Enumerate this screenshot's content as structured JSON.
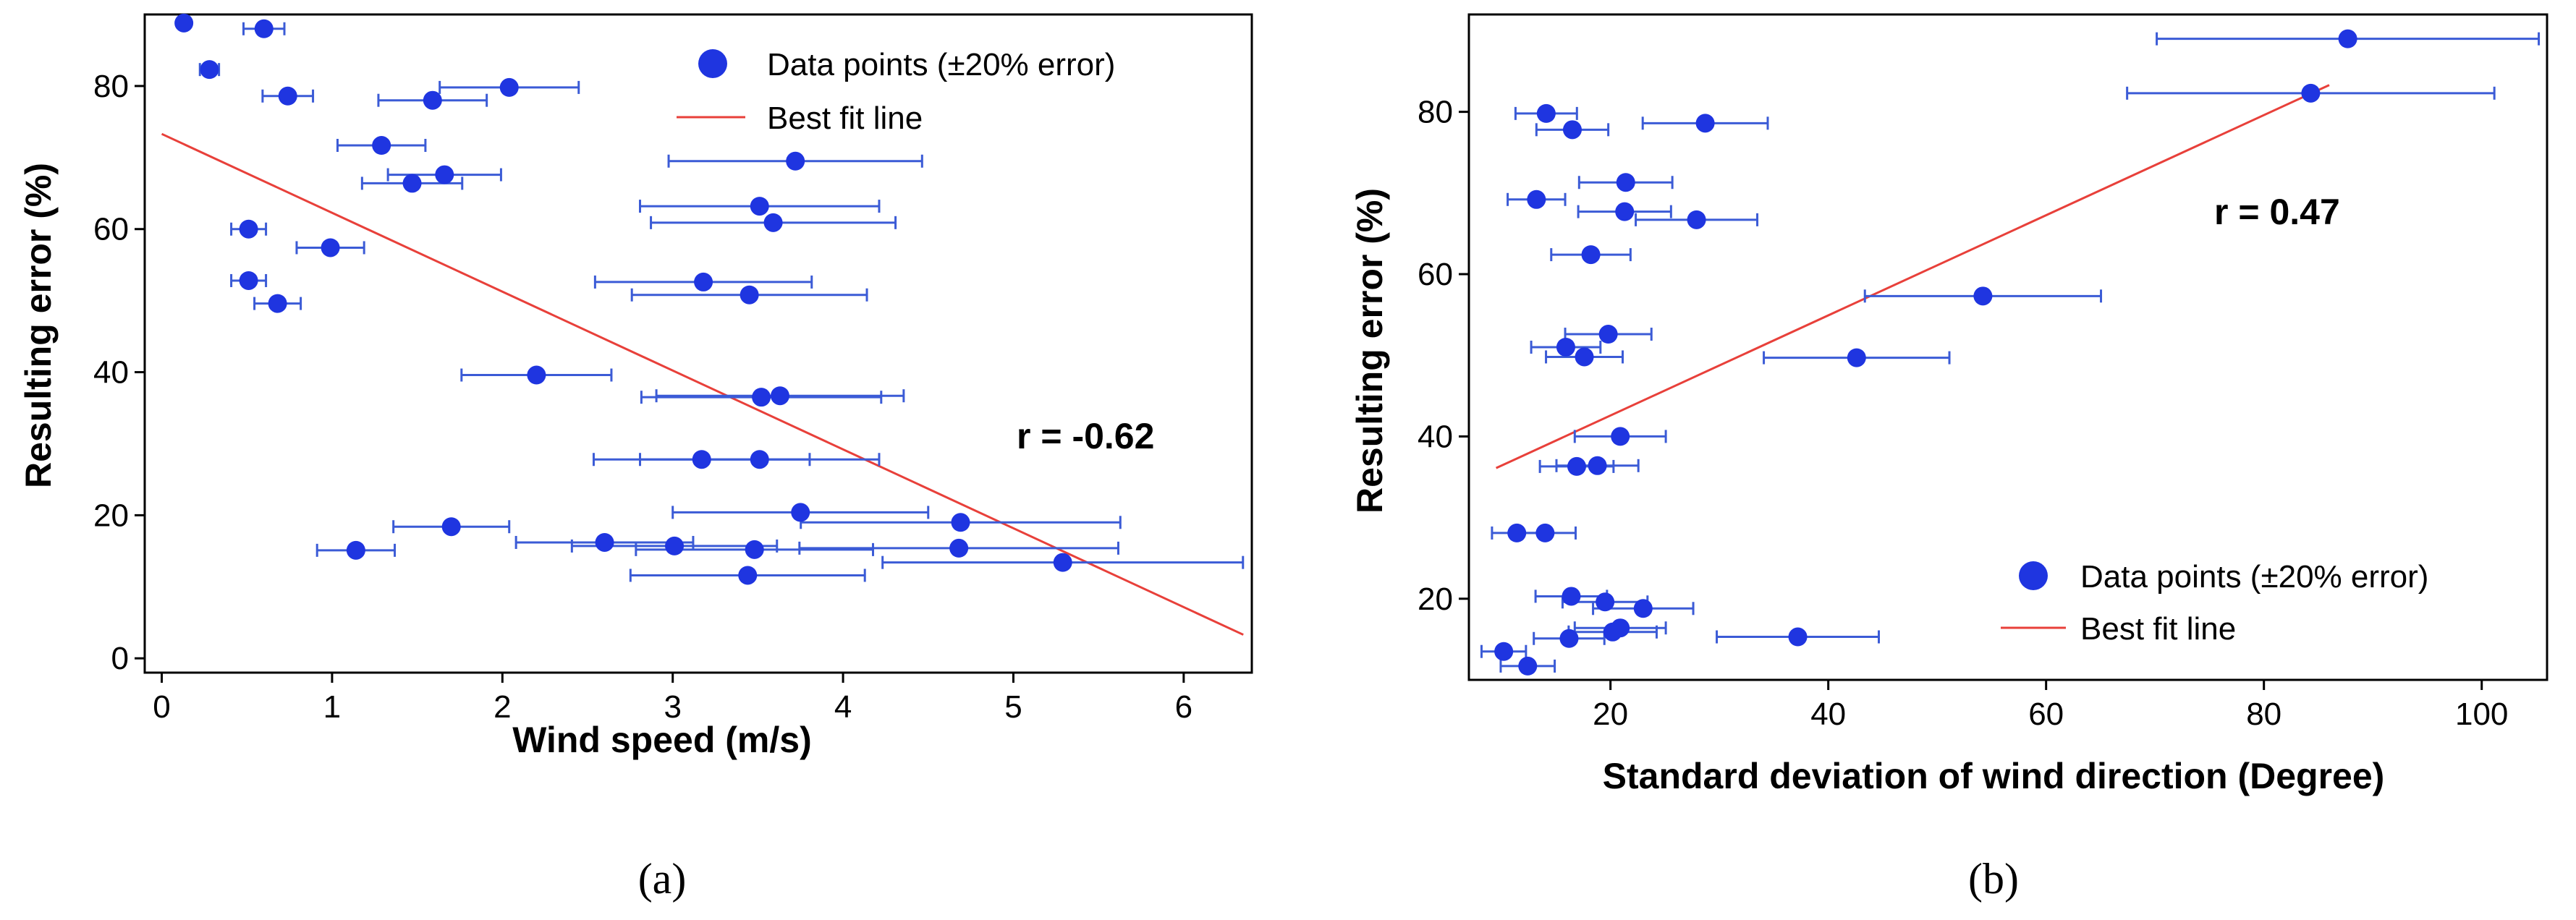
{
  "chart_data": [
    {
      "type": "scatter",
      "panel_label": "(a)",
      "xlabel": "Wind speed (m/s)",
      "ylabel": "Resulting error (%)",
      "xlim": [
        -0.1,
        6.4
      ],
      "ylim": [
        -2,
        90
      ],
      "xticks": [
        0,
        1,
        2,
        3,
        4,
        5,
        6
      ],
      "yticks": [
        0,
        20,
        40,
        60,
        80
      ],
      "annotation": "r = -0.62",
      "legend": {
        "position": "top-right",
        "points_label": "Data points (±20% error)",
        "line_label": "Best fit line"
      },
      "colors": {
        "points": "#1f35e0",
        "line": "#e8403a",
        "error_bar": "#3b5bd6"
      },
      "best_fit": {
        "x": [
          0,
          6.35
        ],
        "y": [
          73.3,
          3.3
        ]
      },
      "series": [
        {
          "name": "Data points (±20% error)",
          "x": [
            0.13,
            0.6,
            0.28,
            0.74,
            2.04,
            1.59,
            1.29,
            1.66,
            1.47,
            3.72,
            3.51,
            3.59,
            0.51,
            0.99,
            0.51,
            0.68,
            3.18,
            3.45,
            2.2,
            3.52,
            3.63,
            3.17,
            3.51,
            3.75,
            4.69,
            1.7,
            2.6,
            3.01,
            3.48,
            4.68,
            1.14,
            5.29,
            3.44
          ],
          "y": [
            88.8,
            88.0,
            82.3,
            78.6,
            79.8,
            78.0,
            71.7,
            67.6,
            66.4,
            69.5,
            63.2,
            60.9,
            60.0,
            57.4,
            52.8,
            49.6,
            52.6,
            50.8,
            39.6,
            36.5,
            36.7,
            27.8,
            27.8,
            20.4,
            19.0,
            18.4,
            16.2,
            15.7,
            15.2,
            15.4,
            15.1,
            13.4,
            11.6
          ]
        }
      ]
    },
    {
      "type": "scatter",
      "panel_label": "(b)",
      "xlabel": "Standard deviation of wind direction (Degree)",
      "ylabel": "Resulting error (%)",
      "xlim": [
        7,
        106
      ],
      "ylim": [
        10,
        92
      ],
      "xticks": [
        20,
        40,
        60,
        80,
        100
      ],
      "yticks": [
        20,
        40,
        60,
        80
      ],
      "annotation": "r = 0.47",
      "legend": {
        "position": "bottom-right",
        "points_label": "Data points (±20% error)",
        "line_label": "Best fit line"
      },
      "colors": {
        "points": "#1f35e0",
        "line": "#e8403a",
        "error_bar": "#3b5bd6"
      },
      "best_fit": {
        "x": [
          9.5,
          86
        ],
        "y": [
          36.1,
          83.3
        ]
      },
      "series": [
        {
          "name": "Data points (±20% error)",
          "x": [
            87.7,
            84.3,
            14.1,
            28.7,
            16.5,
            21.4,
            13.2,
            21.3,
            27.9,
            18.2,
            54.2,
            19.8,
            15.9,
            17.6,
            42.6,
            20.9,
            16.9,
            18.8,
            11.4,
            14.0,
            16.4,
            19.5,
            23.0,
            20.9,
            20.2,
            37.2,
            16.2,
            10.2,
            12.4
          ],
          "y": [
            89.0,
            82.3,
            79.8,
            78.6,
            77.8,
            71.3,
            69.2,
            67.7,
            66.7,
            62.4,
            57.3,
            52.6,
            51.0,
            49.8,
            49.7,
            40.0,
            36.3,
            36.4,
            28.1,
            28.1,
            20.3,
            19.6,
            18.8,
            16.4,
            15.9,
            15.3,
            15.1,
            13.5,
            11.7
          ]
        }
      ]
    }
  ]
}
